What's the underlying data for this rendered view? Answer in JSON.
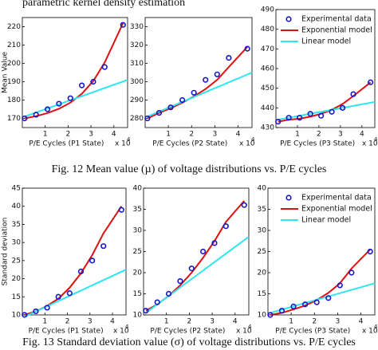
{
  "top_text": "parametric kernel density estimation",
  "captions": [
    "Fig. 12 Mean value (µ) of voltage distributions vs. P/E cycles",
    "Fig. 13 Standard deviation value (σ) of voltage distributions vs. P/E cycles"
  ],
  "chart_data": [
    {
      "type": "scatter",
      "ylabel": "Mean Value",
      "xlabel": "P/E Cycles (P1 State)",
      "x_multiplier": "x 10",
      "x_exponent": "4",
      "xlim": [
        0,
        4.6
      ],
      "xticks": [
        1,
        2,
        3,
        4
      ],
      "ylim": [
        165,
        225
      ],
      "yticks": [
        170,
        180,
        190,
        200,
        210,
        220
      ],
      "series": [
        {
          "style": "markers",
          "color": "#1414c8",
          "x": [
            0.1,
            0.6,
            1.1,
            1.6,
            2.1,
            2.6,
            3.1,
            3.6,
            4.4
          ],
          "values": [
            170,
            172,
            175,
            178,
            181,
            188,
            190,
            198,
            221
          ]
        },
        {
          "style": "line",
          "color": "#dd1111",
          "x": [
            0.1,
            0.6,
            1.1,
            1.6,
            2.1,
            2.6,
            3.1,
            3.6,
            4.4
          ],
          "values": [
            170,
            171.2,
            172.9,
            175.2,
            178.6,
            183.4,
            190.4,
            200.5,
            222
          ]
        },
        {
          "style": "line",
          "color": "#2ee6f2",
          "x": [
            0.1,
            4.6
          ],
          "values": [
            171,
            191
          ]
        }
      ]
    },
    {
      "type": "scatter",
      "xlabel": "P/E Cycles (P2 State)",
      "x_multiplier": "x 10",
      "x_exponent": "4",
      "xlim": [
        0,
        4.6
      ],
      "xticks": [
        1,
        2,
        3,
        4
      ],
      "ylim": [
        275,
        335
      ],
      "yticks": [
        280,
        290,
        300,
        310,
        320,
        330
      ],
      "series": [
        {
          "style": "markers",
          "color": "#1414c8",
          "x": [
            0.1,
            0.6,
            1.1,
            1.6,
            2.1,
            2.6,
            3.1,
            3.6,
            4.4
          ],
          "values": [
            280,
            283,
            286,
            290,
            294,
            301,
            304,
            313,
            318
          ]
        },
        {
          "style": "line",
          "color": "#dd1111",
          "x": [
            0.1,
            0.6,
            1.1,
            1.6,
            2.1,
            2.6,
            3.1,
            3.6,
            4.4
          ],
          "values": [
            280,
            283,
            285.5,
            288.5,
            292,
            296,
            301,
            308,
            319
          ]
        },
        {
          "style": "line",
          "color": "#2ee6f2",
          "x": [
            0.1,
            4.6
          ],
          "values": [
            281,
            305
          ]
        }
      ]
    },
    {
      "type": "scatter",
      "xlabel": "P/E Cycles (P3 State)",
      "x_multiplier": "x 10",
      "x_exponent": "4",
      "legend": "upper right",
      "xlim": [
        0,
        4.6
      ],
      "xticks": [
        1,
        2,
        3,
        4
      ],
      "ylim": [
        430,
        490
      ],
      "yticks": [
        430,
        440,
        450,
        460,
        470,
        480,
        490
      ],
      "series": [
        {
          "name": "Experimental data",
          "style": "markers",
          "color": "#1414c8",
          "x": [
            0.1,
            0.6,
            1.1,
            1.6,
            2.1,
            2.6,
            3.1,
            3.6,
            4.4
          ],
          "values": [
            433,
            435,
            435,
            437,
            436,
            438,
            440,
            447,
            453
          ]
        },
        {
          "name": "Exponential model",
          "style": "line",
          "color": "#dd1111",
          "x": [
            0.1,
            0.6,
            1.1,
            1.6,
            2.1,
            2.6,
            3.1,
            3.6,
            4.4
          ],
          "values": [
            433,
            434,
            434.5,
            435.5,
            437,
            439,
            442,
            446,
            453
          ]
        },
        {
          "name": "Linear model",
          "style": "line",
          "color": "#2ee6f2",
          "x": [
            0.1,
            4.6
          ],
          "values": [
            434,
            443
          ]
        }
      ]
    },
    {
      "type": "scatter",
      "ylabel": "Standard deviation",
      "xlabel": "P/E Cycles (P1 State)",
      "x_multiplier": "x 10",
      "x_exponent": "4",
      "xlim": [
        0,
        4.6
      ],
      "xticks": [
        1,
        2,
        3,
        4
      ],
      "ylim": [
        10,
        45
      ],
      "yticks": [
        10,
        15,
        20,
        25,
        30,
        35,
        40,
        45
      ],
      "series": [
        {
          "style": "markers",
          "color": "#1414c8",
          "x": [
            0.1,
            0.6,
            1.1,
            1.6,
            2.1,
            2.6,
            3.1,
            3.6,
            4.4
          ],
          "values": [
            10,
            11,
            12,
            15,
            16,
            22,
            25,
            29,
            39
          ]
        },
        {
          "style": "line",
          "color": "#dd1111",
          "x": [
            0.1,
            0.6,
            1.1,
            1.6,
            2.1,
            2.6,
            3.1,
            3.6,
            4.4
          ],
          "values": [
            10,
            11,
            12.5,
            14.5,
            17.5,
            21.5,
            26.5,
            32.5,
            40
          ]
        },
        {
          "style": "line",
          "color": "#2ee6f2",
          "x": [
            0.1,
            4.6
          ],
          "values": [
            9.5,
            22.5
          ]
        }
      ]
    },
    {
      "type": "scatter",
      "xlabel": "P/E Cycles (P2 State)",
      "x_multiplier": "x 10",
      "x_exponent": "4",
      "xlim": [
        0,
        4.6
      ],
      "xticks": [
        1,
        2,
        3,
        4
      ],
      "ylim": [
        10,
        40
      ],
      "yticks": [
        10,
        15,
        20,
        25,
        30,
        35,
        40
      ],
      "series": [
        {
          "style": "markers",
          "color": "#1414c8",
          "x": [
            0.1,
            0.6,
            1.1,
            1.6,
            2.1,
            2.6,
            3.1,
            3.6,
            4.4
          ],
          "values": [
            11,
            13,
            15,
            18,
            21,
            25,
            27,
            31,
            36
          ]
        },
        {
          "style": "line",
          "color": "#dd1111",
          "x": [
            0.1,
            0.6,
            1.1,
            1.6,
            2.1,
            2.6,
            3.1,
            3.6,
            4.4
          ],
          "values": [
            11,
            12.5,
            14.5,
            17,
            20,
            23.5,
            27.5,
            32,
            37
          ]
        },
        {
          "style": "line",
          "color": "#2ee6f2",
          "x": [
            0.1,
            4.6
          ],
          "values": [
            10.5,
            28.5
          ]
        }
      ]
    },
    {
      "type": "scatter",
      "xlabel": "P/E Cycles (P3 State)",
      "x_multiplier": "x 10",
      "x_exponent": "4",
      "legend": "upper right",
      "xlim": [
        0,
        4.6
      ],
      "xticks": [
        1,
        2,
        3,
        4
      ],
      "ylim": [
        10,
        40
      ],
      "yticks": [
        10,
        15,
        20,
        25,
        30,
        35,
        40
      ],
      "series": [
        {
          "name": "Experimental data",
          "style": "markers",
          "color": "#1414c8",
          "x": [
            0.1,
            0.6,
            1.1,
            1.6,
            2.1,
            2.6,
            3.1,
            3.6,
            4.4
          ],
          "values": [
            10,
            11,
            12,
            12.5,
            13,
            14,
            17,
            20,
            25
          ]
        },
        {
          "name": "Exponential model",
          "style": "line",
          "color": "#dd1111",
          "x": [
            0.1,
            0.6,
            1.1,
            1.6,
            2.1,
            2.6,
            3.1,
            3.6,
            4.4
          ],
          "values": [
            10,
            10.5,
            11.3,
            12.2,
            13.5,
            15.2,
            17.5,
            21,
            25.5
          ]
        },
        {
          "name": "Linear model",
          "style": "line",
          "color": "#2ee6f2",
          "x": [
            0.1,
            4.6
          ],
          "values": [
            10.5,
            17.5
          ]
        }
      ]
    }
  ]
}
